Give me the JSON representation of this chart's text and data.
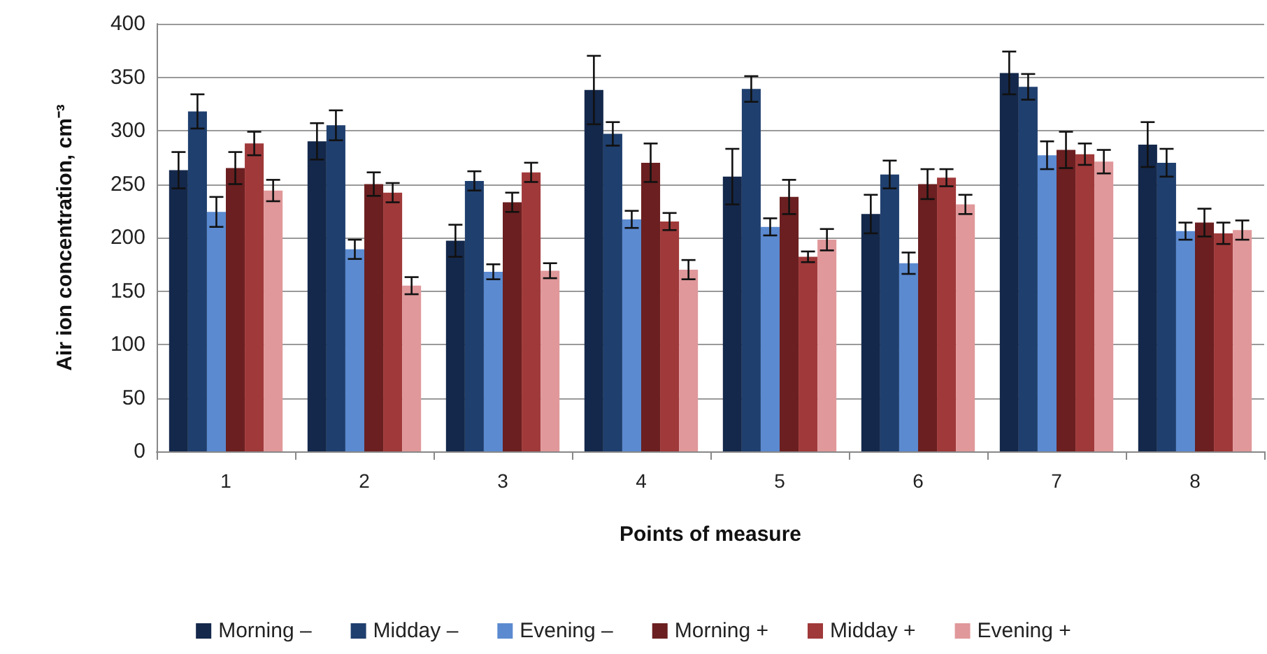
{
  "chart_data": {
    "type": "bar",
    "xlabel": "Points of measure",
    "ylabel": "Air ion concentration, cm⁻³",
    "categories": [
      "1",
      "2",
      "3",
      "4",
      "5",
      "6",
      "7",
      "8"
    ],
    "ylim": [
      0,
      400
    ],
    "yticks": [
      0,
      50,
      100,
      150,
      200,
      250,
      300,
      350,
      400
    ],
    "grid": "y",
    "legend": "bottom",
    "series": [
      {
        "name": "Morning –",
        "color": "#14284b",
        "values": [
          263,
          290,
          197,
          338,
          257,
          222,
          354,
          287
        ],
        "errors": [
          17,
          17,
          15,
          32,
          26,
          18,
          20,
          21
        ]
      },
      {
        "name": "Midday –",
        "color": "#1f3f6e",
        "values": [
          318,
          305,
          253,
          297,
          339,
          259,
          341,
          270
        ],
        "errors": [
          16,
          14,
          9,
          11,
          12,
          13,
          12,
          13
        ]
      },
      {
        "name": "Evening –",
        "color": "#5b8ad0",
        "values": [
          224,
          189,
          168,
          217,
          210,
          176,
          277,
          206
        ],
        "errors": [
          14,
          9,
          7,
          8,
          8,
          10,
          13,
          8
        ]
      },
      {
        "name": "Morning +",
        "color": "#6b1f20",
        "values": [
          265,
          250,
          233,
          270,
          238,
          250,
          282,
          214
        ],
        "errors": [
          15,
          11,
          9,
          18,
          16,
          14,
          17,
          13
        ]
      },
      {
        "name": "Midday +",
        "color": "#a0393a",
        "values": [
          288,
          242,
          261,
          215,
          182,
          256,
          278,
          204
        ],
        "errors": [
          11,
          9,
          9,
          8,
          5,
          8,
          10,
          10
        ]
      },
      {
        "name": "Evening +",
        "color": "#e0989a",
        "values": [
          244,
          155,
          169,
          170,
          198,
          231,
          271,
          207
        ],
        "errors": [
          10,
          8,
          7,
          9,
          10,
          9,
          11,
          9
        ]
      }
    ]
  }
}
